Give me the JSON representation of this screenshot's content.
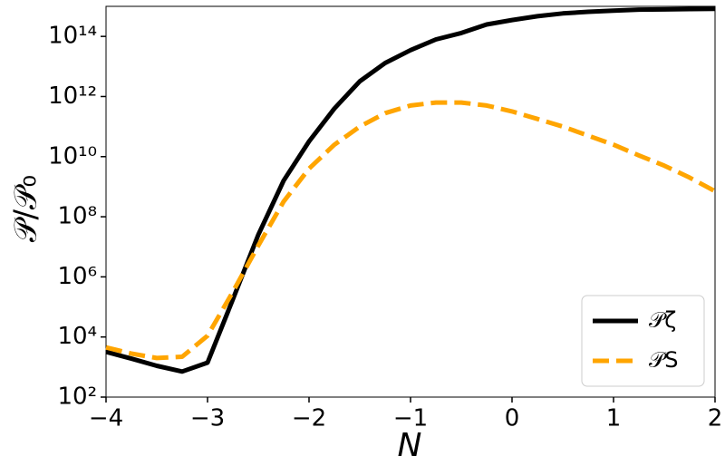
{
  "chart_data": {
    "type": "line",
    "xlabel": "N",
    "ylabel": "𝒫/𝒫₀",
    "x": [
      -4,
      -3.75,
      -3.5,
      -3.25,
      -3,
      -2.75,
      -2.5,
      -2.25,
      -2,
      -1.75,
      -1.5,
      -1.25,
      -1,
      -0.75,
      -0.5,
      -0.25,
      0,
      0.25,
      0.5,
      0.75,
      1,
      1.25,
      1.5,
      1.75,
      2
    ],
    "series": [
      {
        "name": "𝒫ζ",
        "color": "#000000",
        "dash": "solid",
        "values": [
          3200.0,
          1900.0,
          1100.0,
          710.0,
          1400.0,
          180000.0,
          25000000.0,
          1600000000.0,
          32000000000.0,
          400000000000.0,
          3200000000000.0,
          13000000000000.0,
          35000000000000.0,
          79000000000000.0,
          130000000000000.0,
          250000000000000.0,
          350000000000000.0,
          470000000000000.0,
          580000000000000.0,
          660000000000000.0,
          720000000000000.0,
          780000000000000.0,
          790000000000000.0,
          810000000000000.0,
          830000000000000.0
        ]
      },
      {
        "name": "𝒫S",
        "color": "#ffa500",
        "dash": "dashed",
        "values": [
          4500.0,
          2800.0,
          2000.0,
          2200.0,
          11000.0,
          320000.0,
          11000000.0,
          320000000.0,
          4000000000.0,
          25000000000.0,
          100000000000.0,
          280000000000.0,
          500000000000.0,
          630000000000.0,
          630000000000.0,
          500000000000.0,
          320000000000.0,
          180000000000.0,
          100000000000.0,
          50000000000.0,
          25000000000.0,
          11000000000.0,
          5000000000.0,
          2000000000.0,
          710000000.0
        ]
      }
    ],
    "xlim": [
      -4,
      2
    ],
    "xticks": [
      {
        "value": -4,
        "label": "−4"
      },
      {
        "value": -3,
        "label": "−3"
      },
      {
        "value": -2,
        "label": "−2"
      },
      {
        "value": -1,
        "label": "−1"
      },
      0,
      1,
      2
    ],
    "ylim": [
      100,
      1000000000000000.0
    ],
    "ylog": true,
    "yticks": [
      {
        "value": 100,
        "label": "10²"
      },
      {
        "value": 10000,
        "label": "10⁴"
      },
      {
        "value": 1000000,
        "label": "10⁶"
      },
      {
        "value": 100000000,
        "label": "10⁸"
      },
      {
        "value": 10000000000,
        "label": "10¹⁰"
      },
      {
        "value": 1000000000000,
        "label": "10¹²"
      },
      {
        "value": 100000000000000,
        "label": "10¹⁴"
      }
    ],
    "grid": false,
    "legend": "lower right"
  }
}
